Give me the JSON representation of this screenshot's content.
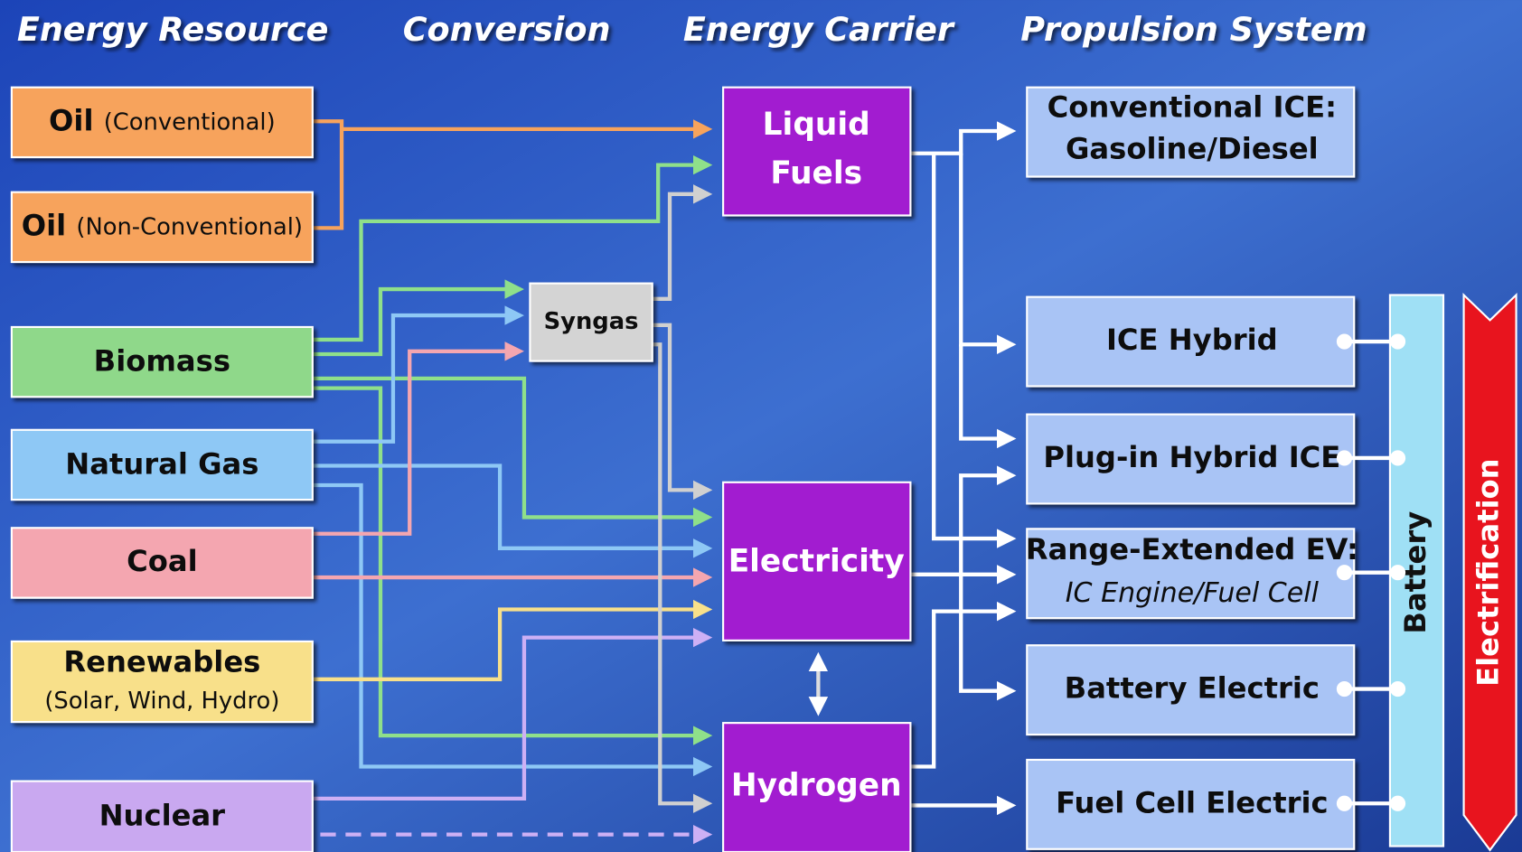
{
  "headers": [
    "Energy Resource",
    "Conversion",
    "Energy Carrier",
    "Propulsion System"
  ],
  "resources": [
    {
      "label": "Oil",
      "note": "(Conventional)"
    },
    {
      "label": "Oil",
      "note": "(Non-Conventional)"
    },
    {
      "label": "Biomass"
    },
    {
      "label": "Natural Gas"
    },
    {
      "label": "Coal"
    },
    {
      "label": "Renewables",
      "note": "(Solar, Wind, Hydro)"
    },
    {
      "label": "Nuclear"
    }
  ],
  "conversion": {
    "label": "Syngas"
  },
  "carriers": [
    {
      "lines": [
        "Liquid",
        "Fuels"
      ]
    },
    {
      "lines": [
        "Electricity"
      ]
    },
    {
      "lines": [
        "Hydrogen"
      ]
    }
  ],
  "propulsion": [
    {
      "lines": [
        "Conventional ICE:",
        "Gasoline/Diesel"
      ]
    },
    {
      "lines": [
        "ICE Hybrid"
      ]
    },
    {
      "lines": [
        "Plug-in Hybrid ICE"
      ]
    },
    {
      "lines": [
        "Range-Extended EV:",
        "IC Engine/Fuel Cell"
      ]
    },
    {
      "lines": [
        "Battery Electric"
      ]
    },
    {
      "lines": [
        "Fuel Cell Electric"
      ]
    }
  ],
  "battery": "Battery",
  "electrification": "Electrification"
}
